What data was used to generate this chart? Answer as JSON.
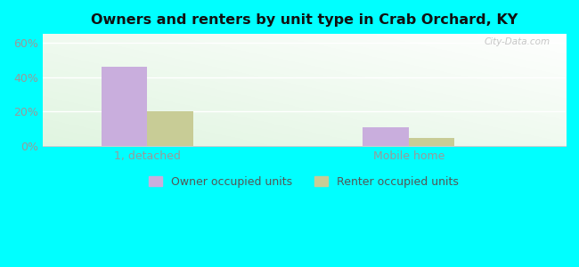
{
  "title": "Owners and renters by unit type in Crab Orchard, KY",
  "categories": [
    "1, detached",
    "Mobile home"
  ],
  "owner_values": [
    46.0,
    11.0
  ],
  "renter_values": [
    20.0,
    5.0
  ],
  "owner_color": "#c9aedd",
  "renter_color": "#c8cc96",
  "yticks": [
    0,
    20,
    40,
    60
  ],
  "ytick_labels": [
    "0%",
    "20%",
    "40%",
    "60%"
  ],
  "ylim": [
    0,
    65
  ],
  "background_outer": "#00ffff",
  "legend_owner": "Owner occupied units",
  "legend_renter": "Renter occupied units",
  "bar_width": 0.35,
  "group_positions": [
    1.0,
    3.0
  ],
  "xlim": [
    0.2,
    4.2
  ],
  "watermark": "City-Data.com"
}
